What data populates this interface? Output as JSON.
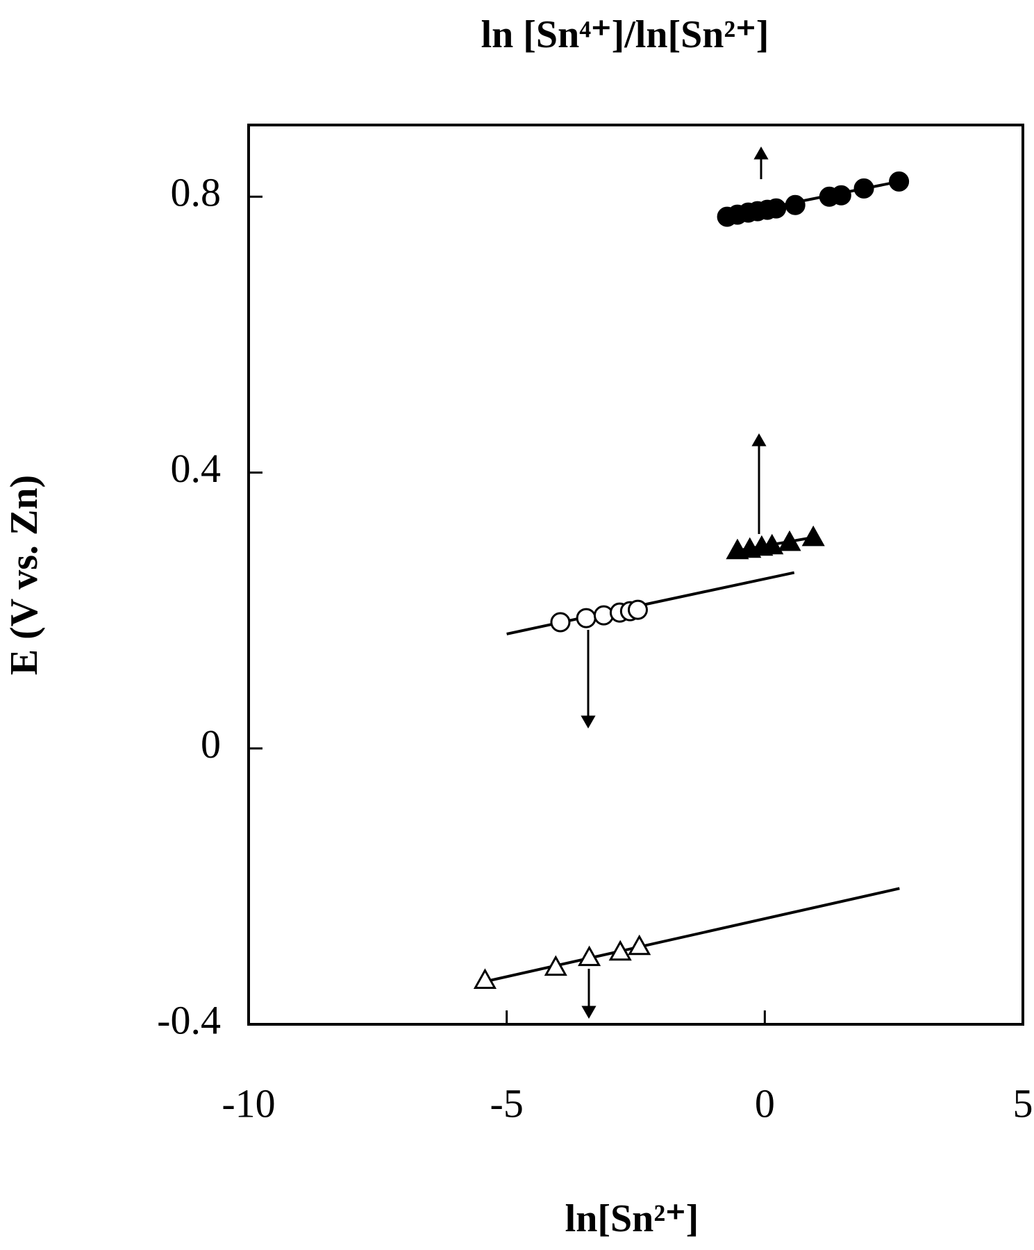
{
  "chart_data": {
    "type": "scatter",
    "title": "ln [Sn⁴⁺]/ln[Sn²⁺]",
    "x_label": "ln[Sn²⁺]",
    "y_label": "E (V vs. Zn)",
    "xlim": [
      -10,
      5
    ],
    "xticks": [
      -10,
      -5,
      0,
      5
    ],
    "ylim": [
      -0.4,
      0.904
    ],
    "yticks": [
      -0.4,
      0,
      0.4,
      0.8
    ],
    "series": [
      {
        "marker": "circle",
        "filled": true,
        "color": "#000000",
        "x": [
          -0.73,
          -0.53,
          -0.32,
          -0.14,
          0.05,
          0.22,
          0.59,
          1.25,
          1.48,
          1.92,
          2.6
        ],
        "values": [
          0.771,
          0.774,
          0.777,
          0.779,
          0.781,
          0.783,
          0.788,
          0.8,
          0.802,
          0.812,
          0.822
        ],
        "fit_x": [
          -0.73,
          2.6
        ],
        "fit_y": [
          0.772,
          0.822
        ]
      },
      {
        "marker": "triangle",
        "filled": true,
        "color": "#000000",
        "x": [
          -0.53,
          -0.29,
          -0.06,
          0.14,
          0.48,
          0.94
        ],
        "values": [
          0.287,
          0.289,
          0.292,
          0.294,
          0.299,
          0.306
        ],
        "fit_x": [
          -0.6,
          0.94
        ],
        "fit_y": [
          0.286,
          0.306
        ]
      },
      {
        "marker": "circle",
        "filled": false,
        "color": "#000000",
        "x": [
          -3.96,
          -3.46,
          -3.12,
          -2.81,
          -2.61,
          -2.46
        ],
        "values": [
          0.183,
          0.189,
          0.193,
          0.197,
          0.199,
          0.201
        ],
        "fit_x": [
          -5,
          0.57
        ],
        "fit_y": [
          0.166,
          0.255
        ]
      },
      {
        "marker": "triangle",
        "filled": false,
        "color": "#000000",
        "x": [
          -5.42,
          -4.05,
          -3.4,
          -2.8,
          -2.43
        ],
        "values": [
          -0.336,
          -0.317,
          -0.303,
          -0.295,
          -0.287
        ],
        "fit_x": [
          -5.42,
          2.61
        ],
        "fit_y": [
          -0.338,
          -0.203
        ]
      }
    ]
  }
}
